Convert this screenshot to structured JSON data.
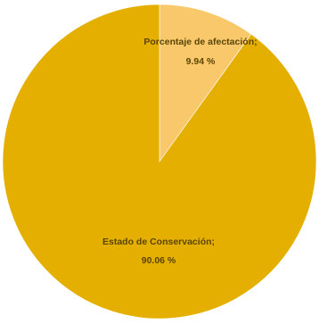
{
  "chart_data": {
    "type": "pie",
    "title": "",
    "slices": [
      {
        "category": "Porcentaje de afectación",
        "value": 9.94,
        "value_label": "9.94 %",
        "color": "#f9c86a"
      },
      {
        "category": "Estado de Conservación",
        "value": 90.06,
        "value_label": "90.06 %",
        "color": "#e5af00"
      }
    ],
    "unit": "%",
    "legend": "none"
  }
}
